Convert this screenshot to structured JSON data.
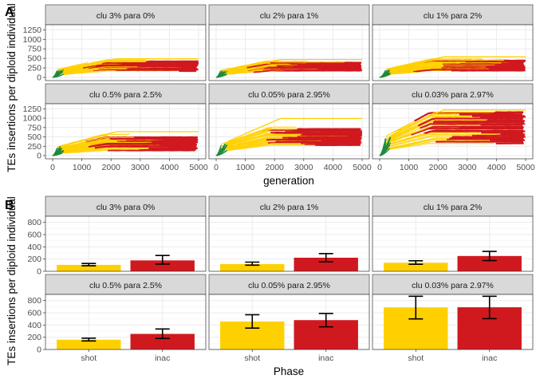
{
  "colors": {
    "shot": "#FFD000",
    "inac": "#D0191E",
    "early": "#1E8A3C",
    "strip": "#D9D9D9",
    "grid": "#EBEBEB",
    "tick": "#4D4D4D"
  },
  "chart_data": [
    {
      "panel_letter": "A",
      "type": "line",
      "description": "TE insertion trajectories over generations, faceted by cluster setting",
      "xlabel": "generation",
      "ylabel": "TEs insertions per diploid individual",
      "xlim": [
        0,
        5000
      ],
      "ylim": [
        0,
        1300
      ],
      "x_ticks": [
        "0",
        "1000",
        "2000",
        "3000",
        "4000",
        "5000"
      ],
      "y_ticks": [
        "0",
        "250",
        "500",
        "750",
        "1000",
        "1250"
      ],
      "facets": [
        {
          "label": "clu 3% para 0%",
          "plateau_range": [
            180,
            470
          ],
          "top_trace": 490,
          "inac_from_gen": 1000
        },
        {
          "label": "clu 2% para 1%",
          "plateau_range": [
            180,
            430
          ],
          "top_trace": 470,
          "inac_from_gen": 1000
        },
        {
          "label": "clu 1% para 2%",
          "plateau_range": [
            180,
            490
          ],
          "top_trace": 540,
          "inac_from_gen": 1000
        },
        {
          "label": "clu 0.5% para 2.5%",
          "plateau_range": [
            150,
            560
          ],
          "top_trace": 640,
          "inac_from_gen": 1000
        },
        {
          "label": "clu 0.05% para 2.95%",
          "plateau_range": [
            280,
            760
          ],
          "top_trace": 990,
          "inac_from_gen": 1500
        },
        {
          "label": "clu 0.03% para 2.97%",
          "plateau_range": [
            330,
            1200
          ],
          "top_trace": 1220,
          "inac_from_gen": 700
        }
      ]
    },
    {
      "panel_letter": "B",
      "type": "bar",
      "xlabel": "Phase",
      "ylabel": "TEs insertions per diploid individual",
      "ylim": [
        0,
        900
      ],
      "y_ticks": [
        "0",
        "200",
        "400",
        "600",
        "800"
      ],
      "categories": [
        "shot",
        "inac"
      ],
      "facets": [
        {
          "label": "clu 3% para 0%",
          "values": [
            105,
            178
          ],
          "err_low": [
            90,
            118
          ],
          "err_high": [
            128,
            258
          ]
        },
        {
          "label": "clu 2% para 1%",
          "values": [
            118,
            222
          ],
          "err_low": [
            100,
            155
          ],
          "err_high": [
            150,
            290
          ]
        },
        {
          "label": "clu 1% para 2%",
          "values": [
            140,
            250
          ],
          "err_low": [
            115,
            175
          ],
          "err_high": [
            172,
            325
          ]
        },
        {
          "label": "clu 0.5% para 2.5%",
          "values": [
            160,
            255
          ],
          "err_low": [
            140,
            180
          ],
          "err_high": [
            185,
            335
          ]
        },
        {
          "label": "clu 0.05% para 2.95%",
          "values": [
            458,
            480
          ],
          "err_low": [
            350,
            370
          ],
          "err_high": [
            568,
            590
          ]
        },
        {
          "label": "clu 0.03% para 2.97%",
          "values": [
            688,
            690
          ],
          "err_low": [
            500,
            505
          ],
          "err_high": [
            870,
            870
          ]
        }
      ]
    }
  ]
}
